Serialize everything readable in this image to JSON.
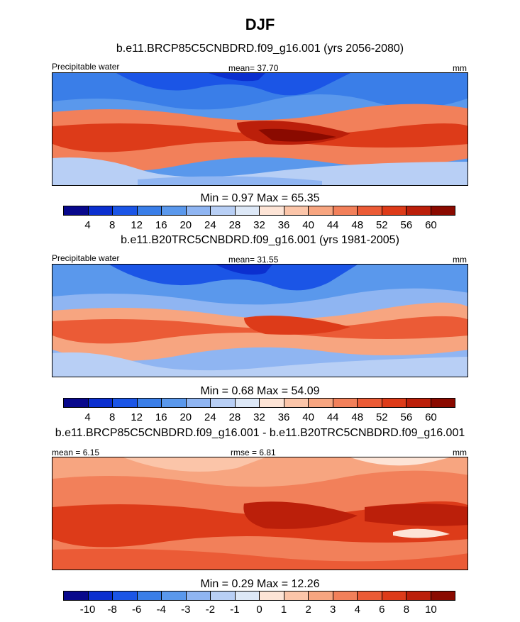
{
  "header": {
    "title": "DJF"
  },
  "palette": [
    "#08088c",
    "#0b2fcf",
    "#1b55e6",
    "#3a7ee8",
    "#5a98ec",
    "#8fb5f2",
    "#b8cff5",
    "#dde8f7",
    "#fde4d6",
    "#fbc5a9",
    "#f7a580",
    "#f2805a",
    "#eb5b36",
    "#dd3b19",
    "#bb1f0a",
    "#8a0a00"
  ],
  "chart_data": [
    {
      "type": "heatmap",
      "subtitle": "b.e11.BRCP85C5CNBDRD.f09_g16.001 (yrs 2056-2080)",
      "left_label": "Precipitable water",
      "center_label": "mean=  37.70",
      "units": "mm",
      "mean": 37.7,
      "min": 0.97,
      "max": 65.35,
      "minmax_text": "Min =   0.97 Max =  65.35",
      "colorbar_ticks": [
        "4",
        "8",
        "12",
        "16",
        "20",
        "24",
        "28",
        "32",
        "36",
        "40",
        "44",
        "48",
        "52",
        "56",
        "60"
      ]
    },
    {
      "type": "heatmap",
      "subtitle": "b.e11.B20TRC5CNBDRD.f09_g16.001 (yrs 1981-2005)",
      "left_label": "Precipitable water",
      "center_label": "mean=  31.55",
      "units": "mm",
      "mean": 31.55,
      "min": 0.68,
      "max": 54.09,
      "minmax_text": "Min =   0.68 Max =  54.09",
      "colorbar_ticks": [
        "4",
        "8",
        "12",
        "16",
        "20",
        "24",
        "28",
        "32",
        "36",
        "40",
        "44",
        "48",
        "52",
        "56",
        "60"
      ]
    },
    {
      "type": "heatmap",
      "subtitle": "b.e11.BRCP85C5CNBDRD.f09_g16.001 - b.e11.B20TRC5CNBDRD.f09_g16.001",
      "left_label": "mean =   6.15",
      "center_label": "rmse =   6.81",
      "units": "mm",
      "mean": 6.15,
      "rmse": 6.81,
      "min": 0.29,
      "max": 12.26,
      "minmax_text": "Min =   0.29 Max =  12.26",
      "colorbar_ticks": [
        "-10",
        "-8",
        "-6",
        "-4",
        "-3",
        "-2",
        "-1",
        "0",
        "1",
        "2",
        "3",
        "4",
        "6",
        "8",
        "10"
      ]
    }
  ]
}
